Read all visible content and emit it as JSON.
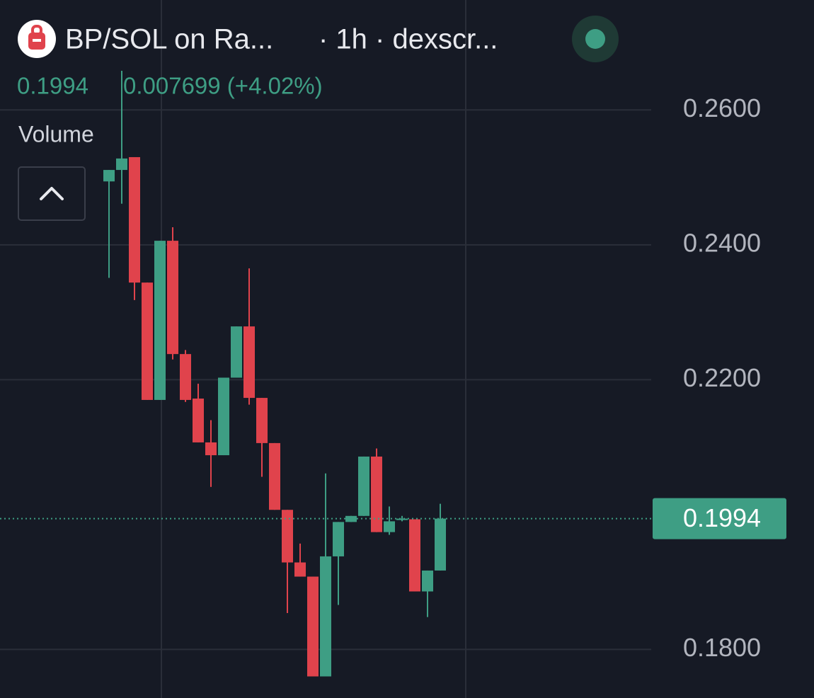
{
  "chart_data": {
    "type": "candlestick",
    "title": "BP/SOL on Ra...",
    "subtitle": "· 1h · dexscr...",
    "legend": {
      "close": 0.1994,
      "change": "0.007699 (+4.02%)"
    },
    "indicator": "Volume",
    "last_price": 0.1994,
    "up_color": "#3e9e84",
    "down_color": "#e0434c",
    "grid": true,
    "ylim": [
      0.1728,
      0.2763
    ],
    "yticks": [
      {
        "value": 0.18,
        "label": "0.1800"
      },
      {
        "value": 0.22,
        "label": "0.2200"
      },
      {
        "value": 0.24,
        "label": "0.2400"
      },
      {
        "value": 0.26,
        "label": "0.2600"
      }
    ],
    "categories": [
      null,
      null,
      null,
      null,
      null,
      null,
      null,
      null,
      null,
      null,
      null,
      null,
      null,
      null,
      null,
      null,
      null,
      null,
      null,
      null,
      null,
      null,
      null,
      null,
      null,
      null,
      null
    ],
    "open": [
      0.2494,
      0.2511,
      0.253,
      0.2344,
      0.217,
      0.2406,
      0.2238,
      0.2172,
      0.2107,
      0.2088,
      0.2203,
      0.2279,
      0.2173,
      0.2106,
      0.2007,
      0.1929,
      0.1908,
      0.176,
      0.1938,
      0.1989,
      0.1998,
      0.2086,
      0.1974,
      0.1994,
      0.1993,
      0.1886,
      0.1917
    ],
    "high": [
      0.2511,
      0.2658,
      0.253,
      0.2344,
      0.2406,
      0.2426,
      0.2244,
      0.2194,
      0.214,
      0.2203,
      0.2279,
      0.2365,
      0.2173,
      0.2106,
      0.2007,
      0.1957,
      0.1908,
      0.2061,
      0.1989,
      0.1998,
      0.2086,
      0.2098,
      0.2012,
      0.1998,
      0.1993,
      0.1917,
      0.2016
    ],
    "low": [
      0.2351,
      0.2461,
      0.2318,
      0.217,
      0.217,
      0.223,
      0.2167,
      0.2107,
      0.2041,
      0.2088,
      0.2203,
      0.2163,
      0.2056,
      0.2007,
      0.1854,
      0.1908,
      0.176,
      0.176,
      0.1866,
      0.1989,
      0.1998,
      0.1974,
      0.197,
      0.199,
      0.1886,
      0.1848,
      0.1917
    ],
    "close": [
      0.2511,
      0.2528,
      0.2344,
      0.217,
      0.2406,
      0.2238,
      0.217,
      0.2107,
      0.2088,
      0.2203,
      0.2279,
      0.2173,
      0.2106,
      0.2007,
      0.1929,
      0.1908,
      0.176,
      0.1938,
      0.1989,
      0.1998,
      0.2086,
      0.1974,
      0.199,
      0.1994,
      0.1886,
      0.1917,
      0.1994
    ]
  }
}
